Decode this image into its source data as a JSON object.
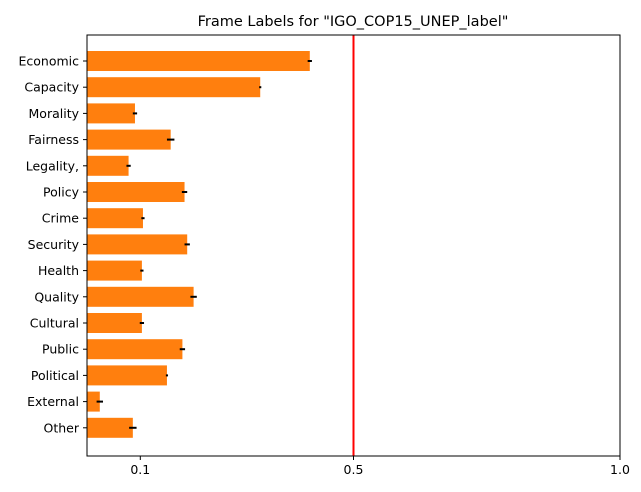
{
  "chart_data": {
    "type": "bar",
    "orientation": "horizontal",
    "title": "Frame Labels for \"IGO_COP15_UNEP_label\"",
    "xlabel": "",
    "ylabel": "",
    "categories": [
      "Economic",
      "Capacity",
      "Morality",
      "Fairness",
      "Legality,",
      "Policy",
      "Crime",
      "Security",
      "Health",
      "Quality",
      "Cultural",
      "Public",
      "Political",
      "External",
      "Other"
    ],
    "values": [
      0.418,
      0.325,
      0.09,
      0.157,
      0.078,
      0.183,
      0.105,
      0.188,
      0.103,
      0.2,
      0.103,
      0.179,
      0.15,
      0.024,
      0.086
    ],
    "errors": [
      0.004,
      0.002,
      0.004,
      0.007,
      0.004,
      0.005,
      0.003,
      0.005,
      0.003,
      0.006,
      0.004,
      0.005,
      0.002,
      0.006,
      0.007
    ],
    "xlim": [
      0,
      1.0
    ],
    "xticks": [
      0.1,
      0.5,
      1.0
    ],
    "xtick_labels": [
      "0.1",
      "0.5",
      "1.0"
    ],
    "threshold_line": 0.5,
    "colors": {
      "bar": "#ff7f0e",
      "error": "#000000",
      "threshold": "#ff0000",
      "axis": "#000000"
    },
    "grid": false
  }
}
